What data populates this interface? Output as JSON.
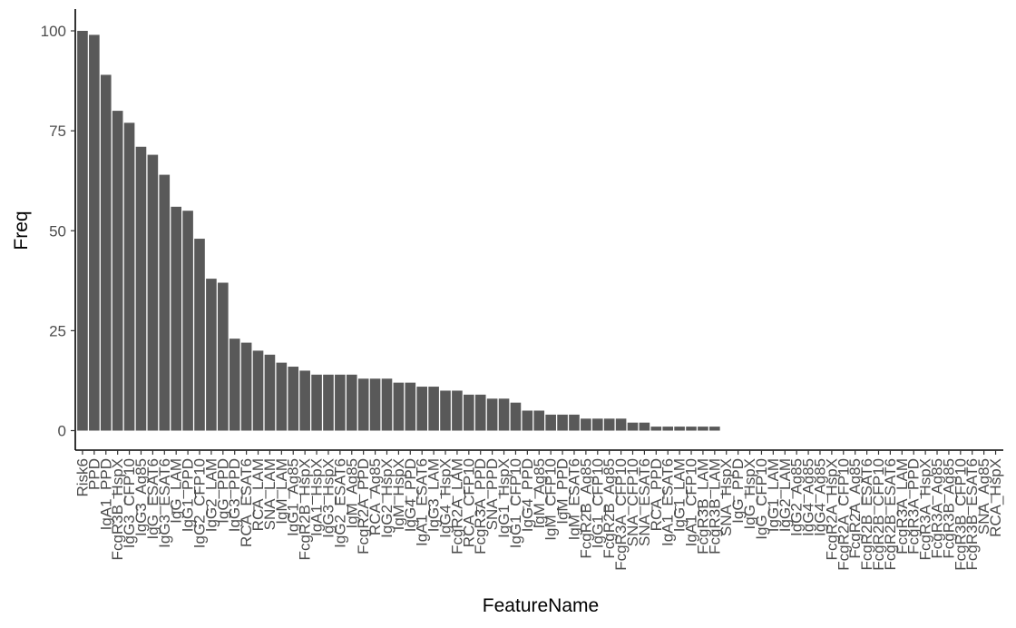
{
  "chart_data": {
    "type": "bar",
    "title": "",
    "xlabel": "FeatureName",
    "ylabel": "Freq",
    "ylim": [
      0,
      105
    ],
    "yticks": [
      0,
      25,
      50,
      75,
      100
    ],
    "grid": false,
    "legend": "none",
    "bar_color": "#595959",
    "categories": [
      "Risk6",
      "PPD",
      "IgA1_PPD",
      "FcgR3B_HspX",
      "IgG3_CFP10",
      "IgG3_Ag85",
      "IgG_ESAT6",
      "IgG3_ESAT6",
      "IgG_LAM",
      "IgG1_PPD",
      "IgG2_CFP10",
      "IgG2_LAM",
      "IgG_PPD",
      "IgG3_PPD",
      "RCA_ESAT6",
      "RCA_LAM",
      "SNA_LAM",
      "IgM_LAM",
      "IgG1_Ag85",
      "FcgR2B_HspX",
      "IgA1_HspX",
      "IgG3_HspX",
      "IgG2_ESAT6",
      "IgM_Ag85",
      "FcgR2A_PPD",
      "RCA_Ag85",
      "IgG2_HspX",
      "IgM_HspX",
      "IgG4_PPD",
      "IgA1_ESAT6",
      "IgG3_LAM",
      "IgG4_HspX",
      "FcgR2A_LAM",
      "RCA_CFP10",
      "FcgR3A_PPD",
      "SNA_PPD",
      "IgG1_HspX",
      "IgG1_CFP10",
      "IgG4_PPD",
      "IgM_Ag85",
      "IgM_CFP10",
      "IgM_PPD",
      "IgM_ESAT6",
      "FcgR2B_Ag85",
      "IgG1_CFP10",
      "FcgR2B_Ag85",
      "FcgR3A_CFP10",
      "SNA_CFP10",
      "SNA_ESAT6",
      "RCA_PPD",
      "IgA1_ESAT6",
      "IgG1_LAM",
      "IgA1_CFP10",
      "FcgR3B_LAM",
      "FcgR3B_LAM",
      "SNA_HspX",
      "IgG_PPD",
      "IgG_HspX",
      "IgG_CFP10",
      "IgG1_LAM",
      "IgG2_LAM",
      "IgG2_Ag85",
      "IgG4_Ag85",
      "IgG4_Ag85",
      "FcgR2A_HspX",
      "FcgR2A_CFP10",
      "FcgR2A_Ag85",
      "FcgR2B_ESAT6",
      "FcgR2B_CFP10",
      "FcgR2B_ESAT6",
      "FcgR3A_LAM",
      "FcgR3A_PPD",
      "FcgR3A_HspX",
      "FcgR3A_Ag85",
      "FcgR3B_Ag85",
      "FcgR3B_CFP10",
      "FcgR3B_ESAT6",
      "SNA_Ag85",
      "RCA_HspX"
    ],
    "values": [
      100,
      99,
      89,
      80,
      77,
      71,
      69,
      64,
      56,
      55,
      48,
      38,
      37,
      23,
      22,
      20,
      19,
      17,
      16,
      15,
      14,
      14,
      14,
      14,
      13,
      13,
      13,
      12,
      12,
      11,
      11,
      10,
      10,
      9,
      9,
      8,
      8,
      7,
      5,
      5,
      4,
      4,
      4,
      3,
      3,
      3,
      3,
      2,
      2,
      1,
      1,
      1,
      1,
      1,
      1,
      0,
      0,
      0,
      0,
      0,
      0,
      0,
      0,
      0,
      0,
      0,
      0,
      0,
      0,
      0,
      0,
      0,
      0,
      0,
      0,
      0,
      0,
      0,
      0
    ]
  }
}
